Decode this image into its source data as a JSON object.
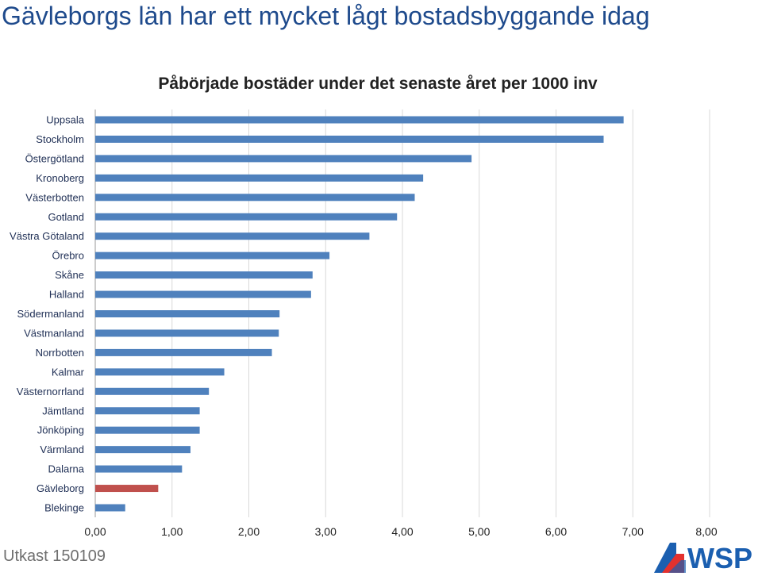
{
  "slide": {
    "title": "Gävleborgs län har ett mycket lågt bostadsbyggande idag",
    "footer": "Utkast 150109",
    "logo_text": "WSP"
  },
  "colors": {
    "bar": "#4f81bd",
    "highlight": "#c0504d",
    "title": "#1e4a8c",
    "logo_blue": "#1b5fb0",
    "logo_red": "#e3312e"
  },
  "chart_data": {
    "type": "bar",
    "orientation": "horizontal",
    "title": "Påbörjade bostäder under det senaste året per 1000 inv",
    "xlabel": "",
    "ylabel": "",
    "xlim": [
      0,
      8
    ],
    "ticks": [
      "0,00",
      "1,00",
      "2,00",
      "3,00",
      "4,00",
      "5,00",
      "6,00",
      "7,00",
      "8,00"
    ],
    "grid": true,
    "legend": "none",
    "highlight_category": "Gävleborg",
    "categories": [
      "Uppsala",
      "Stockholm",
      "Östergötland",
      "Kronoberg",
      "Västerbotten",
      "Gotland",
      "Västra Götaland",
      "Örebro",
      "Skåne",
      "Halland",
      "Södermanland",
      "Västmanland",
      "Norrbotten",
      "Kalmar",
      "Västernorrland",
      "Jämtland",
      "Jönköping",
      "Värmland",
      "Dalarna",
      "Gävleborg",
      "Blekinge"
    ],
    "values": [
      6.88,
      6.62,
      4.9,
      4.27,
      4.16,
      3.93,
      3.57,
      3.05,
      2.83,
      2.81,
      2.4,
      2.39,
      2.3,
      1.68,
      1.48,
      1.36,
      1.36,
      1.24,
      1.13,
      0.82,
      0.39
    ]
  }
}
